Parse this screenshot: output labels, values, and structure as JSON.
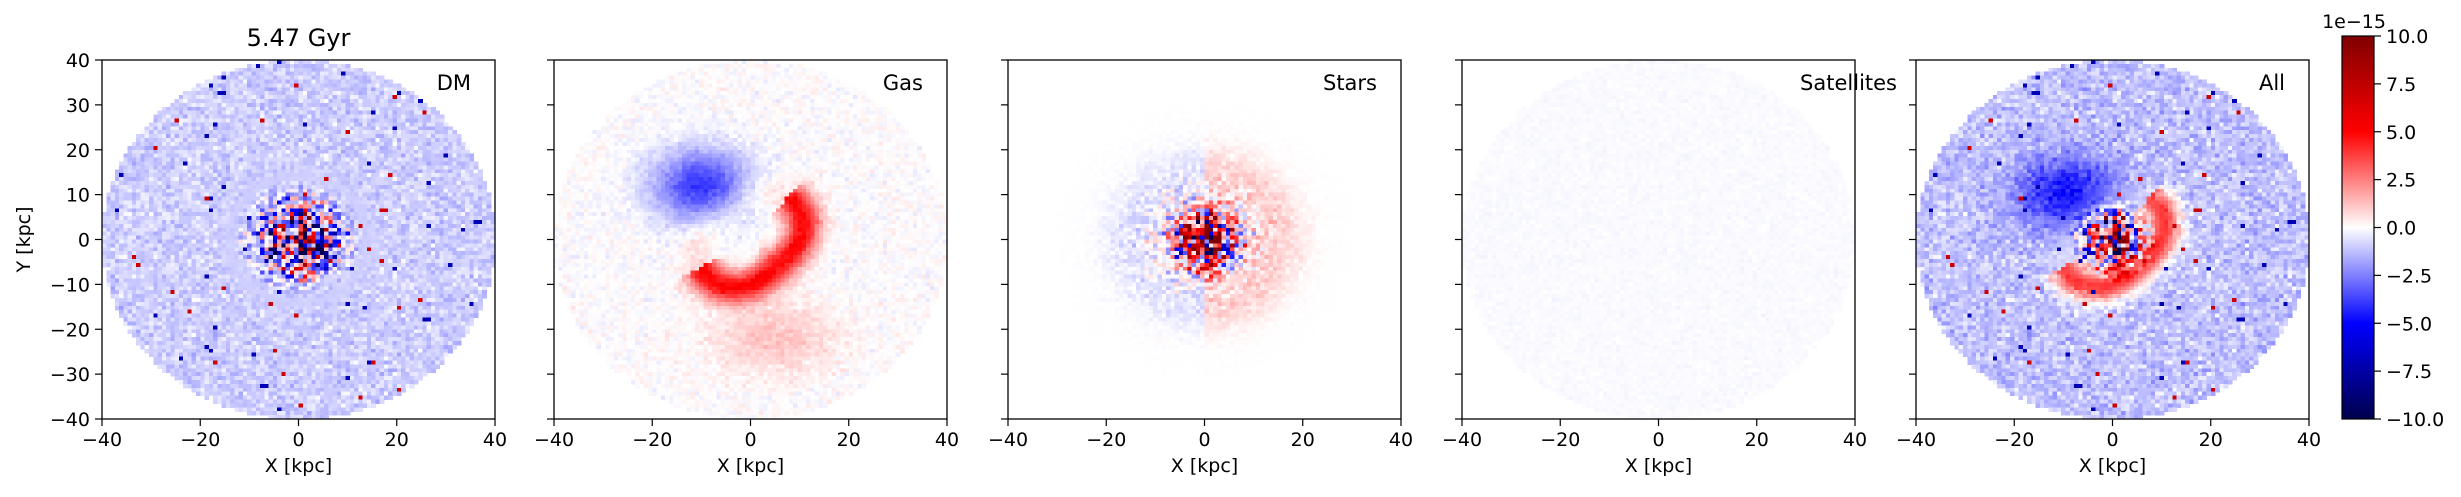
{
  "chart_data": {
    "type": "heatmap",
    "title": "5.47 Gyr",
    "xlabel": "X [kpc]",
    "ylabel": "Y [kpc]",
    "xlim": [
      -40,
      40
    ],
    "ylim": [
      -40,
      40
    ],
    "xticks": [
      -40,
      -20,
      0,
      20,
      40
    ],
    "yticks": [
      -40,
      -30,
      -20,
      -10,
      0,
      10,
      20,
      30,
      40
    ],
    "grid": false,
    "colormap": "seismic",
    "colormap_colors": [
      "#00004c",
      "#0000ff",
      "#ffffff",
      "#ff0000",
      "#7f0000"
    ],
    "colorbar": {
      "range": [
        -10.0,
        10.0
      ],
      "ticks": [
        "-10.0",
        "-7.5",
        "-5.0",
        "-2.5",
        "0.0",
        "2.5",
        "5.0",
        "7.5",
        "10.0"
      ],
      "scale_label": "1e−15"
    },
    "panels": [
      {
        "label": "DM",
        "aperture_radius_kpc": 40,
        "description_values": {
          "background": -1.2,
          "core_amplitude": 6.0,
          "noise": 1.2
        }
      },
      {
        "label": "Gas",
        "aperture_radius_kpc": 40,
        "description_values": {
          "negative_arm_peak": -4.0,
          "positive_arm_peak": 5.0
        }
      },
      {
        "label": "Stars",
        "aperture_radius_kpc": 40,
        "description_values": {
          "core_amplitude": 10.0,
          "halo_amplitude": 1.0
        }
      },
      {
        "label": "Satellites",
        "aperture_radius_kpc": 40,
        "description_values": {
          "background": -0.1
        }
      },
      {
        "label": "All",
        "aperture_radius_kpc": 40,
        "description_values": {
          "background": -1.5,
          "core_amplitude": 10.0,
          "arm_amplitude": 5.0
        }
      }
    ]
  }
}
